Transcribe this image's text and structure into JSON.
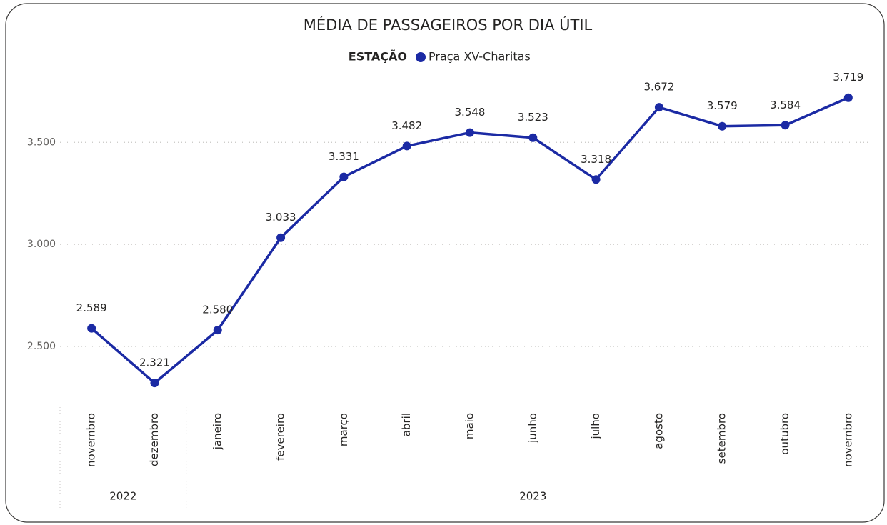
{
  "chart_data": {
    "type": "line",
    "title": "MÉDIA DE PASSAGEIROS POR DIA ÚTIL",
    "legend_title": "ESTAÇÃO",
    "categories": [
      "novembro",
      "dezembro",
      "janeiro",
      "fevereiro",
      "março",
      "abril",
      "maio",
      "junho",
      "julho",
      "agosto",
      "setembro",
      "outubro",
      "novembro"
    ],
    "x_groups": [
      {
        "label": "2022",
        "count": 2
      },
      {
        "label": "2023",
        "count": 11
      }
    ],
    "series": [
      {
        "name": "Praça XV-Charitas",
        "color": "#1b2aa4",
        "values": [
          2589,
          2321,
          2580,
          3033,
          3331,
          3482,
          3548,
          3523,
          3318,
          3672,
          3579,
          3584,
          3719
        ],
        "value_labels": [
          "2.589",
          "2.321",
          "2.580",
          "3.033",
          "3.331",
          "3.482",
          "3.548",
          "3.523",
          "3.318",
          "3.672",
          "3.579",
          "3.584",
          "3.719"
        ]
      }
    ],
    "ylim": [
      2220,
      3830
    ],
    "yticks": [
      {
        "value": 2500,
        "label": "2.500"
      },
      {
        "value": 3000,
        "label": "3.000"
      },
      {
        "value": 3500,
        "label": "3.500"
      }
    ],
    "grid": true
  }
}
